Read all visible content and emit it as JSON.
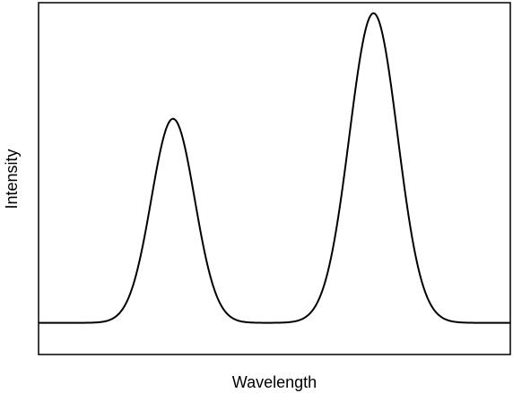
{
  "chart_data": {
    "type": "line",
    "title": "",
    "xlabel": "Wavelength",
    "ylabel": "Intensity",
    "xlim": [
      0,
      100
    ],
    "ylim": [
      0,
      100
    ],
    "grid": false,
    "x_ticks_shown": false,
    "y_ticks_shown": false,
    "series": [
      {
        "color": "#000000",
        "baseline": 9,
        "peaks": [
          {
            "center": 28.5,
            "height": 58,
            "width": 4.6
          },
          {
            "center": 71,
            "height": 88,
            "width": 5.1
          }
        ]
      }
    ]
  }
}
